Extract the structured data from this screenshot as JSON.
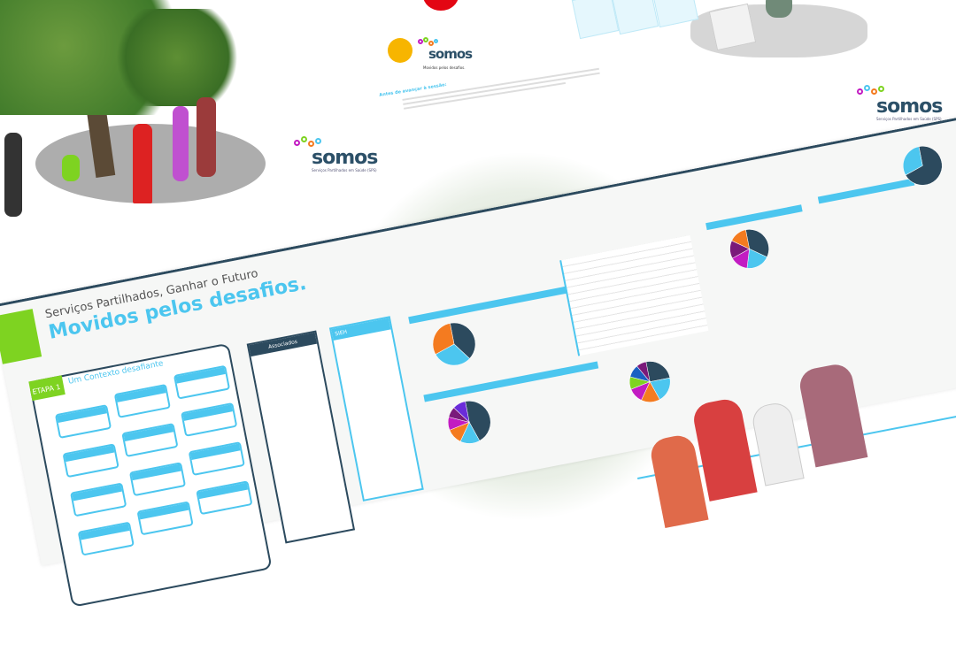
{
  "brand": {
    "name": "somos",
    "tagline": "Serviços Partilhados em Saúde (SPS)"
  },
  "top_sheet": {
    "heading": "Antes de avançar à sessão:",
    "caption": "Movidos pelos desafios."
  },
  "poster": {
    "kicker": "Serviços Partilhados, Ganhar o Futuro",
    "title": "Movidos pelos desafios.",
    "stage_label": "ETAPA 1",
    "stage_title": "Um Contexto desafiante",
    "column_box_title": "Associados",
    "column_box_title_2": "SIEH"
  },
  "colors": {
    "green": "#7ed321",
    "blue": "#4cc6ef",
    "navy": "#2c4a5e",
    "orange": "#f47b20",
    "purple": "#9b1c9b",
    "yellow": "#f7b500",
    "red": "#e30613"
  },
  "chart_data": [
    {
      "type": "pie",
      "values": [
        40,
        30,
        30
      ],
      "colors": [
        "#2c4a5e",
        "#4cc6ef",
        "#f47b20"
      ]
    },
    {
      "type": "pie",
      "values": [
        45,
        15,
        12,
        10,
        8,
        10
      ],
      "colors": [
        "#2c4a5e",
        "#4cc6ef",
        "#f47b20",
        "#c21cc2",
        "#7a1a7a",
        "#6a2bd9"
      ]
    },
    {
      "type": "pie",
      "values": [
        25,
        20,
        15,
        12,
        10,
        10,
        8
      ],
      "colors": [
        "#2c4a5e",
        "#4cc6ef",
        "#f47b20",
        "#c21cc2",
        "#7ed321",
        "#1a60c2",
        "#7a1a7a"
      ]
    },
    {
      "type": "pie",
      "values": [
        35,
        20,
        15,
        15,
        15
      ],
      "colors": [
        "#2c4a5e",
        "#4cc6ef",
        "#c21cc2",
        "#7a1a7a",
        "#f47b20"
      ]
    },
    {
      "type": "pie",
      "values": [
        70,
        30
      ],
      "colors": [
        "#2c4a5e",
        "#4cc6ef"
      ]
    }
  ]
}
